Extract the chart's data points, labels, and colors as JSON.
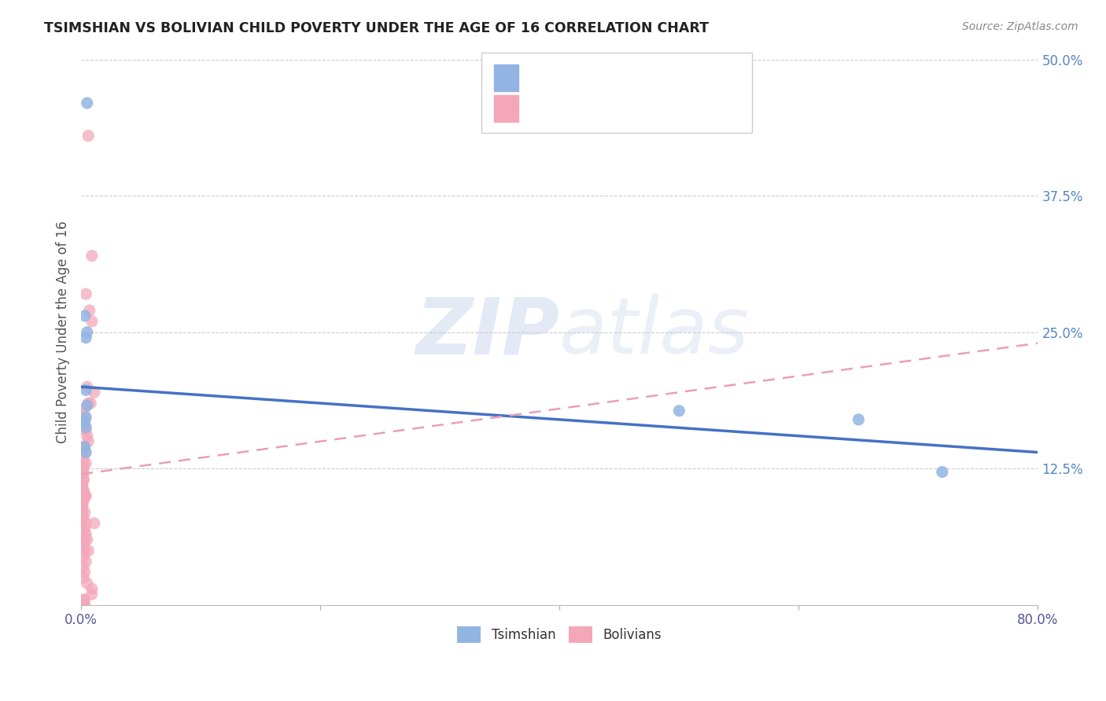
{
  "title": "TSIMSHIAN VS BOLIVIAN CHILD POVERTY UNDER THE AGE OF 16 CORRELATION CHART",
  "source": "Source: ZipAtlas.com",
  "ylabel": "Child Poverty Under the Age of 16",
  "xlim": [
    0.0,
    0.8
  ],
  "ylim": [
    0.0,
    0.5
  ],
  "xticks": [
    0.0,
    0.2,
    0.4,
    0.6,
    0.8
  ],
  "xticklabels": [
    "0.0%",
    "",
    "",
    "",
    "80.0%"
  ],
  "yticks": [
    0.0,
    0.125,
    0.25,
    0.375,
    0.5
  ],
  "yticklabels": [
    "",
    "12.5%",
    "25.0%",
    "37.5%",
    "50.0%"
  ],
  "tsimshian_color": "#92b4e3",
  "bolivian_color": "#f4a7b9",
  "tsimshian_line_color": "#4472c4",
  "bolivian_line_color": "#e8a0b4",
  "watermark_zip": "ZIP",
  "watermark_atlas": "atlas",
  "tsimshian_line_x0": 0.0,
  "tsimshian_line_y0": 0.2,
  "tsimshian_line_x1": 0.8,
  "tsimshian_line_y1": 0.14,
  "bolivian_line_x0": 0.0,
  "bolivian_line_y0": 0.12,
  "bolivian_line_x1": 0.8,
  "bolivian_line_y1": 0.24,
  "tsimshian_x": [
    0.005,
    0.005,
    0.003,
    0.004,
    0.004,
    0.005,
    0.004,
    0.004,
    0.004,
    0.003,
    0.003,
    0.65,
    0.72,
    0.5
  ],
  "tsimshian_y": [
    0.46,
    0.25,
    0.265,
    0.245,
    0.197,
    0.183,
    0.172,
    0.163,
    0.14,
    0.168,
    0.145,
    0.17,
    0.122,
    0.178
  ],
  "bolivian_x": [
    0.006,
    0.009,
    0.004,
    0.007,
    0.009,
    0.005,
    0.011,
    0.008,
    0.006,
    0.003,
    0.002,
    0.002,
    0.004,
    0.005,
    0.006,
    0.002,
    0.003,
    0.003,
    0.002,
    0.002,
    0.004,
    0.002,
    0.001,
    0.001,
    0.002,
    0.002,
    0.002,
    0.001,
    0.001,
    0.002,
    0.002,
    0.003,
    0.004,
    0.003,
    0.001,
    0.002,
    0.001,
    0.001,
    0.001,
    0.001,
    0.003,
    0.001,
    0.001,
    0.002,
    0.011,
    0.004,
    0.003,
    0.002,
    0.002,
    0.004,
    0.005,
    0.003,
    0.002,
    0.001,
    0.006,
    0.003,
    0.002,
    0.004,
    0.002,
    0.003,
    0.002,
    0.005,
    0.009,
    0.009,
    0.003,
    0.002,
    0.001,
    0.002,
    0.001,
    0.002,
    0.003,
    0.002,
    0.002,
    0.002
  ],
  "bolivian_y": [
    0.43,
    0.32,
    0.285,
    0.27,
    0.26,
    0.2,
    0.195,
    0.185,
    0.185,
    0.18,
    0.175,
    0.165,
    0.16,
    0.155,
    0.15,
    0.145,
    0.145,
    0.14,
    0.135,
    0.13,
    0.13,
    0.125,
    0.125,
    0.12,
    0.12,
    0.115,
    0.115,
    0.11,
    0.11,
    0.105,
    0.105,
    0.1,
    0.1,
    0.1,
    0.1,
    0.095,
    0.095,
    0.09,
    0.09,
    0.085,
    0.085,
    0.08,
    0.08,
    0.08,
    0.075,
    0.075,
    0.07,
    0.07,
    0.065,
    0.065,
    0.06,
    0.06,
    0.055,
    0.055,
    0.05,
    0.05,
    0.045,
    0.04,
    0.035,
    0.03,
    0.025,
    0.02,
    0.015,
    0.01,
    0.005,
    0.005,
    0.0,
    0.0,
    0.0,
    0.0,
    0.0,
    0.0,
    0.0,
    0.0
  ]
}
